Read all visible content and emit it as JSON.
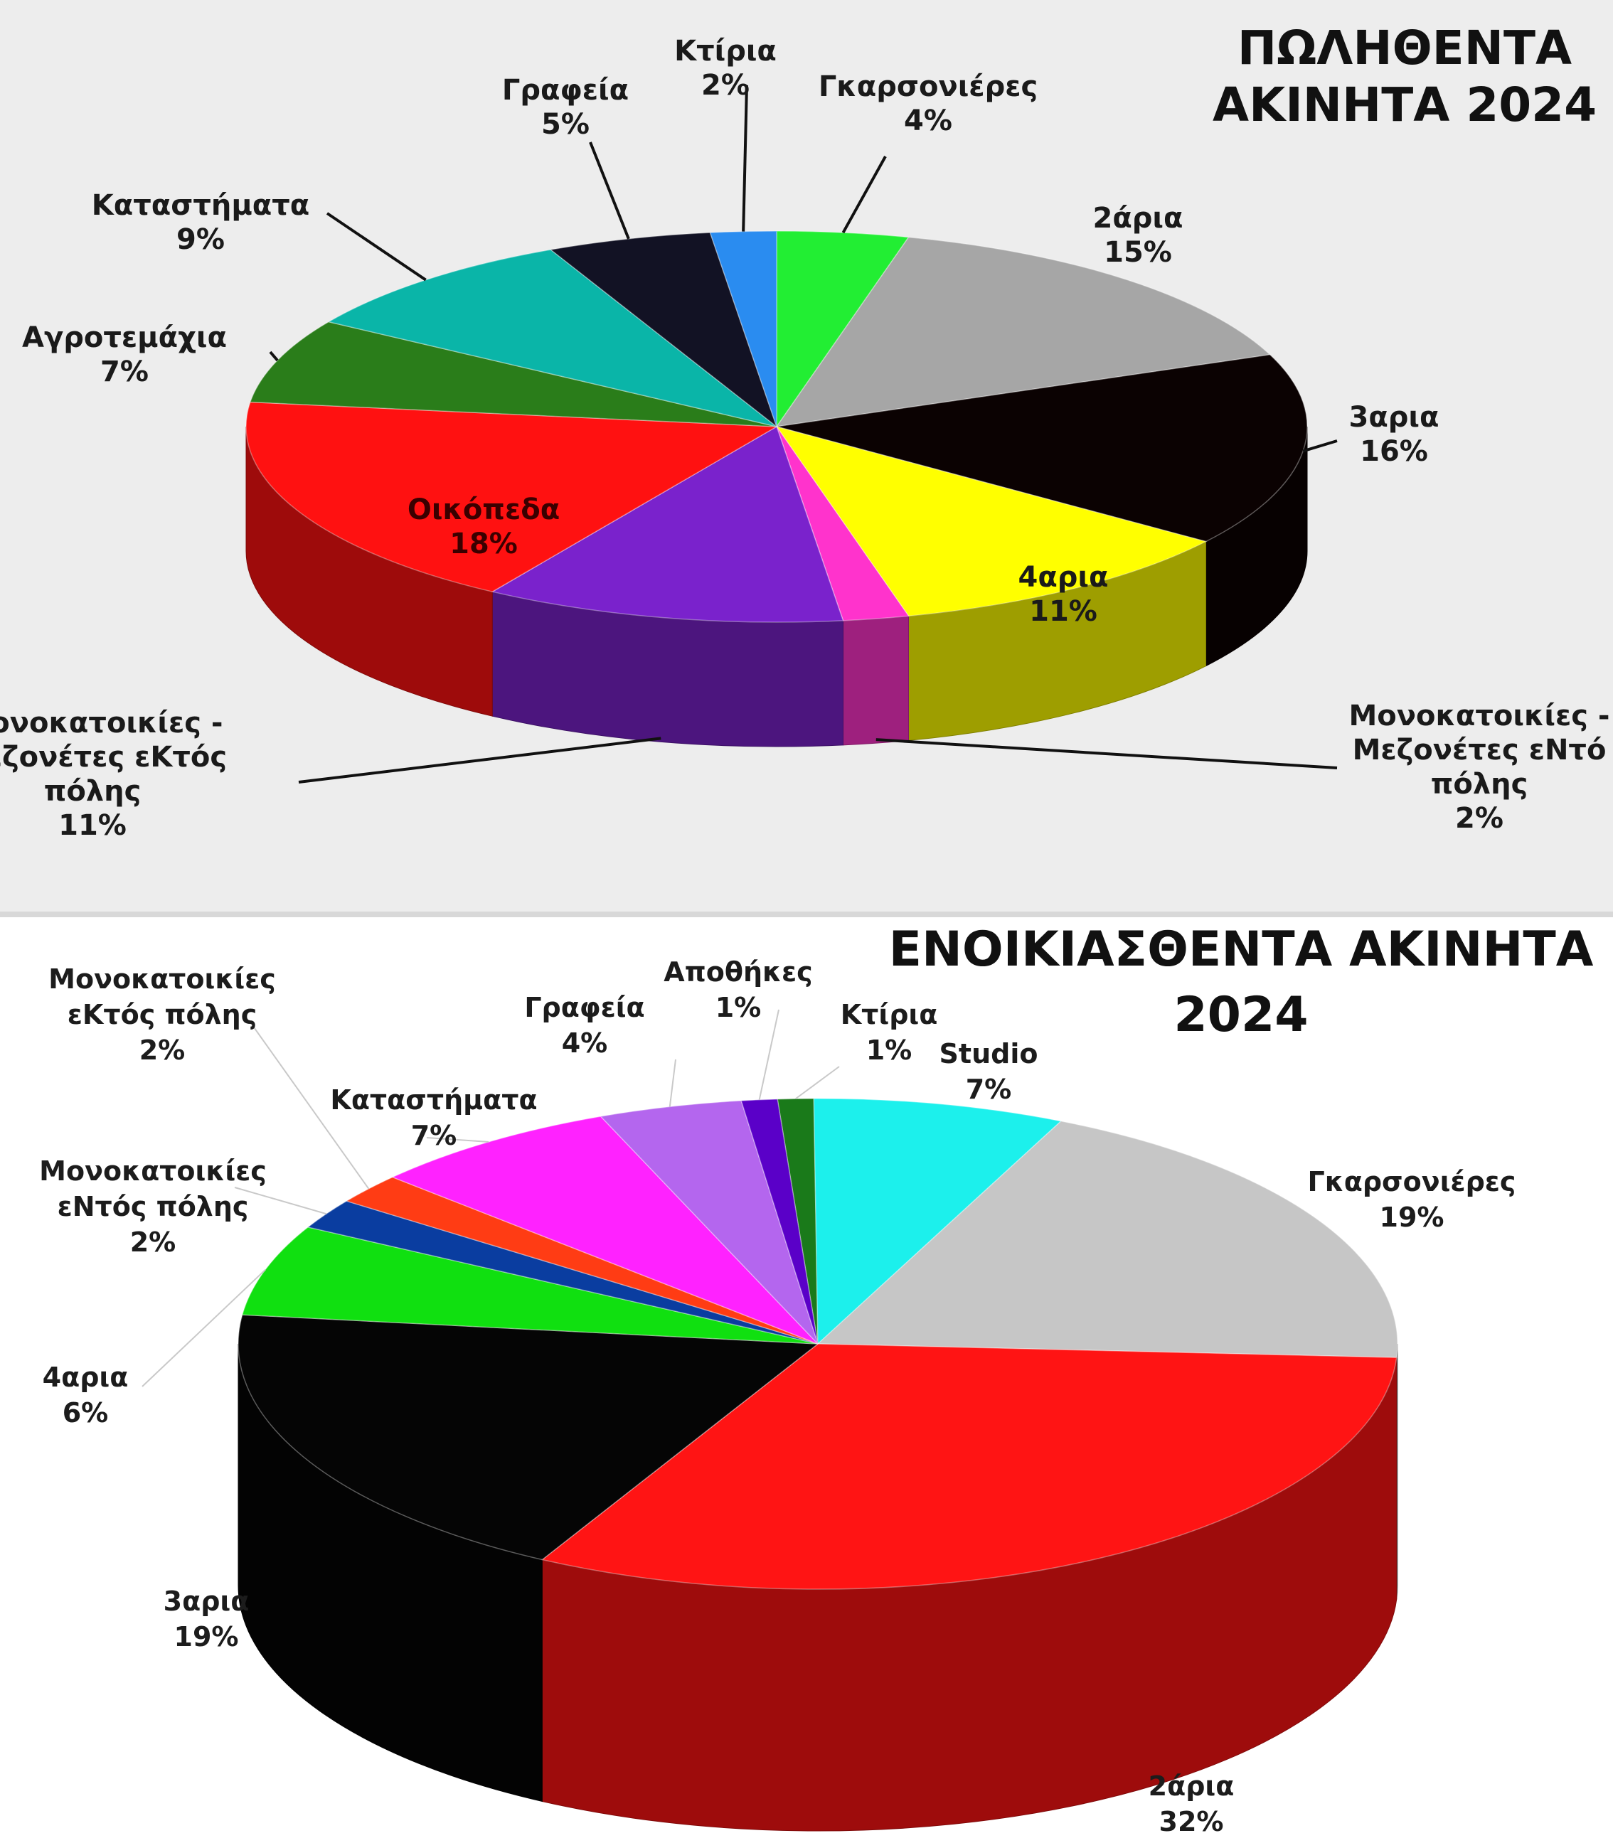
{
  "chart_data": [
    {
      "type": "pie",
      "title": [
        "ΠΩΛΗΘΕΝΤΑ",
        "ΑΚΙΝΗΤΑ 2024"
      ],
      "colors": {
        "Γκαρσονιέρες": "#22ee33",
        "2άρια": "#a6a6a6",
        "3αρια": "#0b0202",
        "4αρια": "#ffff00",
        "Μονοκατοικίες - Μεζονέτες εΝτός πόλης": "#ff33cc",
        "Μονοκατοικίες - Μεζονέτες εΚτός πόλης": "#7a22cc",
        "Οικόπεδα": "#ff1111",
        "Αγροτεμάχια": "#2a7d1a",
        "Καταστήματα": "#0ab5a8",
        "Γραφεία": "#121224",
        "Κτίρια": "#2a8cf0"
      },
      "slices": [
        {
          "name": "Γκαρσονιέρες",
          "label": [
            "Γκαρσονιέρες",
            "4%"
          ],
          "value": 4
        },
        {
          "name": "2άρια",
          "label": [
            "2άρια",
            "15%"
          ],
          "value": 15
        },
        {
          "name": "3αρια",
          "label": [
            "3αρια",
            "16%"
          ],
          "value": 16
        },
        {
          "name": "4αρια",
          "label": [
            "4αρια",
            "11%"
          ],
          "value": 11
        },
        {
          "name": "Μονοκατοικίες - Μεζονέτες εΝτός πόλης",
          "label": [
            "Μονοκατοικίες -",
            "Μεζονέτες εΝτό",
            "πόλης",
            "2%"
          ],
          "value": 2
        },
        {
          "name": "Μονοκατοικίες - Μεζονέτες εΚτός πόλης",
          "label": [
            "Μονοκατοικίες -",
            "Μεζονέτες εΚτός",
            "πόλης",
            "11%"
          ],
          "value": 11
        },
        {
          "name": "Οικόπεδα",
          "label": [
            "Οικόπεδα",
            "18%"
          ],
          "value": 18
        },
        {
          "name": "Αγροτεμάχια",
          "label": [
            "Αγροτεμάχια",
            "7%"
          ],
          "value": 7
        },
        {
          "name": "Καταστήματα",
          "label": [
            "Καταστήματα",
            "9%"
          ],
          "value": 9
        },
        {
          "name": "Γραφεία",
          "label": [
            "Γραφεία",
            "5%"
          ],
          "value": 5
        },
        {
          "name": "Κτίρια",
          "label": [
            "Κτίρια",
            "2%"
          ],
          "value": 2
        }
      ]
    },
    {
      "type": "pie",
      "title": [
        "ΕΝΟΙΚΙΑΣΘΕΝΤΑ ΑΚΙΝΗΤΑ",
        "2024"
      ],
      "colors": {
        "Κτίρια": "#1a7a1a",
        "Studio": "#1cf0ec",
        "Γκαρσονιέρες": "#c6c6c6",
        "2άρια": "#ff1414",
        "3αρια": "#050505",
        "4αρια": "#10e010",
        "Μονοκατοικίες εΝτός πόλης": "#0a3da0",
        "Μονοκατοικίες εΚτός πόλης": "#ff3c14",
        "Καταστήματα": "#ff22ff",
        "Γραφεία": "#b466ee",
        "Αποθήκες": "#5a00c8"
      },
      "slices": [
        {
          "name": "Κτίρια",
          "label": [
            "Κτίρια",
            "1%"
          ],
          "value": 1
        },
        {
          "name": "Studio",
          "label": [
            "Studio",
            "7%"
          ],
          "value": 7
        },
        {
          "name": "Γκαρσονιέρες",
          "label": [
            "Γκαρσονιέρες",
            "19%"
          ],
          "value": 19
        },
        {
          "name": "2άρια",
          "label": [
            "2άρια",
            "32%"
          ],
          "value": 32
        },
        {
          "name": "3αρια",
          "label": [
            "3αρια",
            "19%"
          ],
          "value": 19
        },
        {
          "name": "4αρια",
          "label": [
            "4αρια",
            "6%"
          ],
          "value": 6
        },
        {
          "name": "Μονοκατοικίες εΝτός πόλης",
          "label": [
            "Μονοκατοικίες",
            "εΝτός πόλης",
            "2%"
          ],
          "value": 2
        },
        {
          "name": "Μονοκατοικίες εΚτός πόλης",
          "label": [
            "Μονοκατοικίες",
            "εΚτός πόλης",
            "2%"
          ],
          "value": 2
        },
        {
          "name": "Καταστήματα",
          "label": [
            "Καταστήματα",
            "7%"
          ],
          "value": 7
        },
        {
          "name": "Γραφεία",
          "label": [
            "Γραφεία",
            "4%"
          ],
          "value": 4
        },
        {
          "name": "Αποθήκες",
          "label": [
            "Αποθήκες",
            "1%"
          ],
          "value": 1
        }
      ]
    }
  ]
}
